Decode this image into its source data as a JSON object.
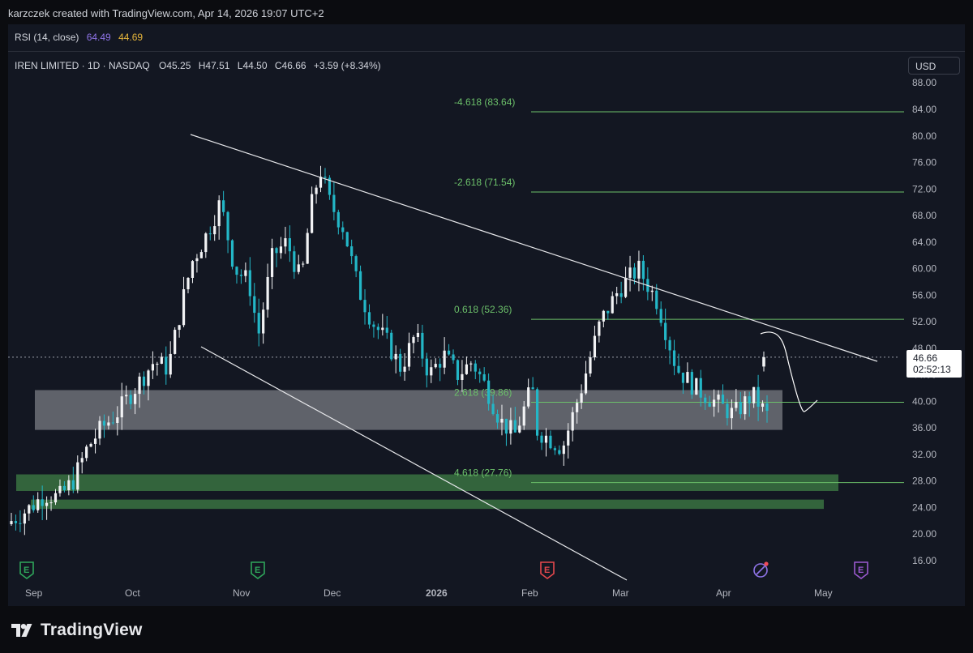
{
  "header": {
    "attribution": "karzczek created with TradingView.com, Apr 14, 2026 19:07 UTC+2"
  },
  "rsi": {
    "label": "RSI (14, close)",
    "value1": "64.49",
    "value2": "44.69",
    "value1_color": "#8f74e8",
    "value2_color": "#e5b53b"
  },
  "legend": {
    "symbol": "IREN LIMITED · 1D · NASDAQ",
    "open_label": "O",
    "open": "45.25",
    "high_label": "H",
    "high": "47.51",
    "low_label": "L",
    "low": "44.50",
    "close_label": "C",
    "close": "46.66",
    "change": "+3.59 (+8.34%)"
  },
  "currency": "USD",
  "last_price": {
    "price": "46.66",
    "countdown": "02:52:13"
  },
  "colors": {
    "up": "#f2f3f5",
    "down": "#23b7c7",
    "fib": "#6cc06a",
    "zone_gray": "#c8cad0",
    "zone_green": "#3f7f45",
    "background": "#131722"
  },
  "axis": {
    "price_ticks": [
      "88.00",
      "84.00",
      "80.00",
      "76.00",
      "72.00",
      "68.00",
      "64.00",
      "60.00",
      "56.00",
      "52.00",
      "48.00",
      "44.00",
      "40.00",
      "36.00",
      "32.00",
      "28.00",
      "24.00",
      "20.00",
      "16.00"
    ],
    "time_ticks": [
      "Sep",
      "Oct",
      "Nov",
      "Dec",
      "2026",
      "Feb",
      "Mar",
      "Apr",
      "May"
    ]
  },
  "fib_levels": [
    {
      "label": "-4.618 (83.64)",
      "price": 83.64
    },
    {
      "label": "-2.618 (71.54)",
      "price": 71.54
    },
    {
      "label": "0.618 (52.36)",
      "price": 52.36
    },
    {
      "label": "2.618 (39.86)",
      "price": 39.86
    },
    {
      "label": "4.618 (27.76)",
      "price": 27.76
    }
  ],
  "zones": [
    {
      "name": "gray-zone",
      "price_top": 41.7,
      "price_bottom": 35.7
    },
    {
      "name": "green-zone-upper",
      "price_top": 29.0,
      "price_bottom": 26.5
    },
    {
      "name": "green-zone-lower",
      "price_top": 25.2,
      "price_bottom": 23.8
    }
  ],
  "earnings_markers": [
    {
      "letter": "E",
      "color": "#2fa65b",
      "date": "2025-08-28"
    },
    {
      "letter": "E",
      "color": "#2fa65b",
      "date": "2025-11-06"
    },
    {
      "letter": "E",
      "color": "#e5484d",
      "date": "2026-02-05"
    },
    {
      "letter": "E",
      "color": "#9b59d0",
      "date": "2026-05-07"
    }
  ],
  "branding": "TradingView"
}
